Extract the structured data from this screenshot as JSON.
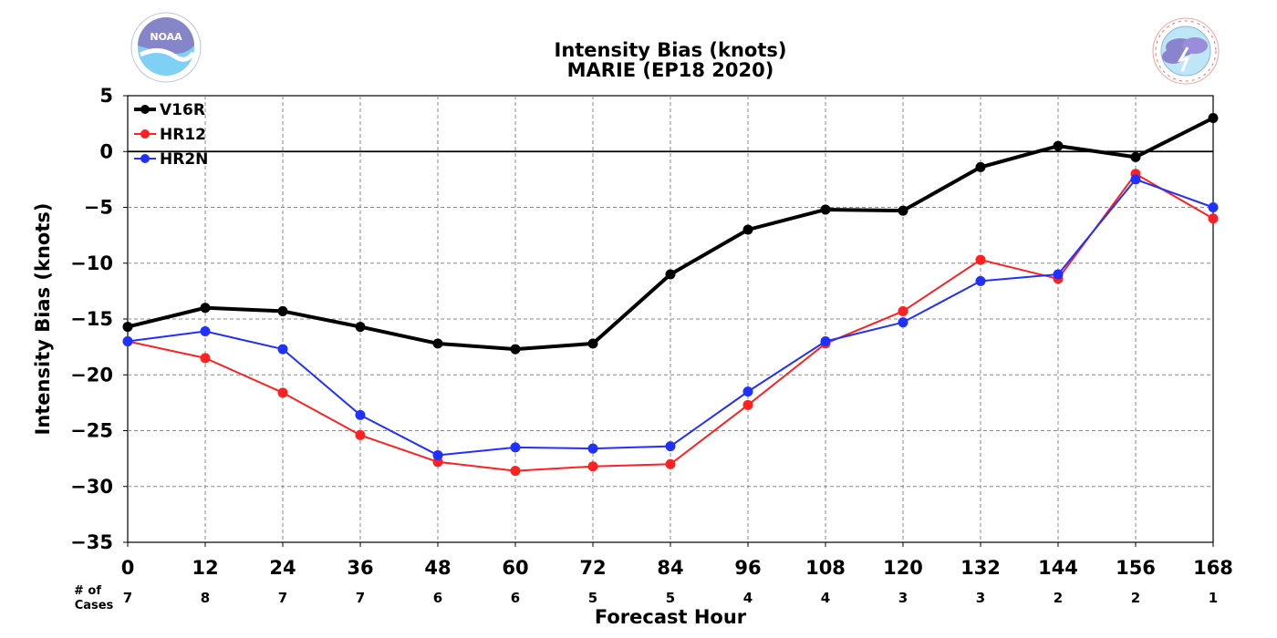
{
  "header": {
    "title_line1": "Intensity Bias (knots)",
    "title_line2": "MARIE (EP18 2020)"
  },
  "logos": {
    "left": {
      "icon": "noaa-logo-icon",
      "text": "NOAA",
      "ring_text": "NATIONAL OCEANIC AND ATMOSPHERIC ADMINISTRATION",
      "bottom_text": "U.S. DEPARTMENT OF COMMERCE"
    },
    "right": {
      "icon": "nws-logo-icon",
      "ring_text": "NATIONAL WEATHER SERVICE"
    }
  },
  "chart_data": {
    "type": "line",
    "title": "Intensity Bias (knots)\nMARIE (EP18 2020)",
    "xlabel": "Forecast Hour",
    "ylabel": "Intensity Bias (knots)",
    "x": [
      0,
      12,
      24,
      36,
      48,
      60,
      72,
      84,
      96,
      108,
      120,
      132,
      144,
      156,
      168
    ],
    "x_ticks": [
      "0",
      "12",
      "24",
      "36",
      "48",
      "60",
      "72",
      "84",
      "96",
      "108",
      "120",
      "132",
      "144",
      "156",
      "168"
    ],
    "y_ticks": [
      "5",
      "0",
      "−5",
      "−10",
      "−15",
      "−20",
      "−25",
      "−30",
      "−35"
    ],
    "xlim": [
      0,
      168
    ],
    "ylim": [
      -35,
      5
    ],
    "grid": true,
    "zero_line": true,
    "legend_position": "top-left",
    "cases_label": "# of\nCases",
    "cases": [
      7,
      8,
      7,
      7,
      6,
      6,
      5,
      5,
      4,
      4,
      3,
      3,
      2,
      2,
      1
    ],
    "series": [
      {
        "name": "V16R",
        "color": "#000000",
        "values": [
          -15.7,
          -14.0,
          -14.3,
          -15.7,
          -17.2,
          -17.7,
          -17.2,
          -11.0,
          -7.0,
          -5.2,
          -5.3,
          -1.4,
          0.5,
          -0.5,
          3.0
        ]
      },
      {
        "name": "HR12",
        "color": "#ff2020",
        "values": [
          -17.0,
          -18.5,
          -21.6,
          -25.4,
          -27.8,
          -28.6,
          -28.2,
          -28.0,
          -22.7,
          -17.2,
          -14.3,
          -9.7,
          -11.4,
          -2.0,
          -6.0
        ]
      },
      {
        "name": "HR2N",
        "color": "#2030ff",
        "values": [
          -17.0,
          -16.1,
          -17.7,
          -23.6,
          -27.2,
          -26.5,
          -26.6,
          -26.4,
          -21.5,
          -17.0,
          -15.3,
          -11.6,
          -11.0,
          -2.5,
          -5.0
        ]
      }
    ]
  }
}
